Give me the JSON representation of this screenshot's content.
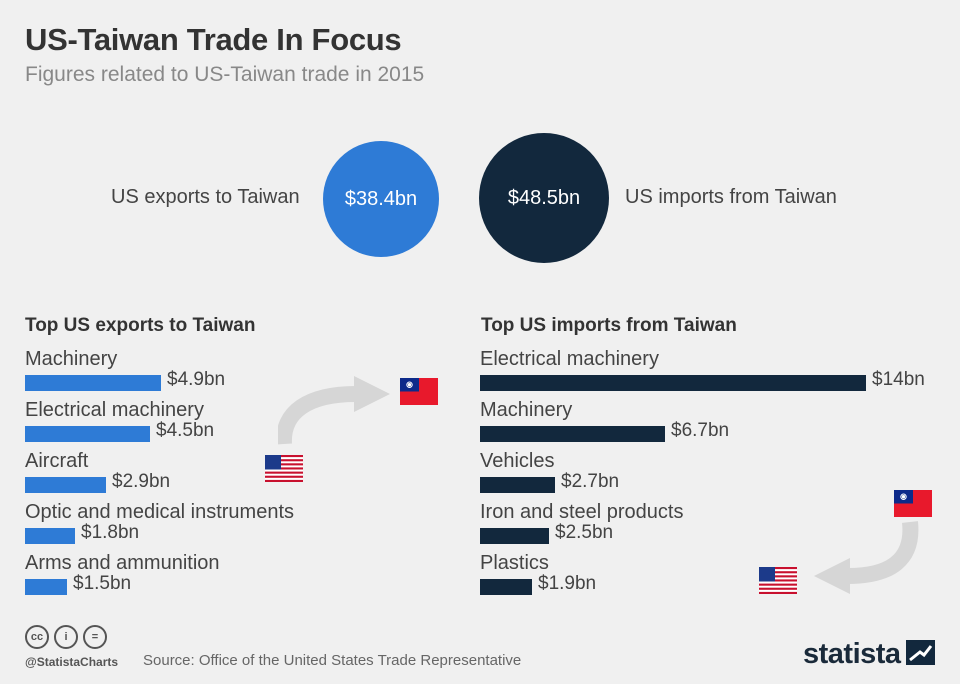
{
  "header": {
    "title": "US-Taiwan Trade In Focus",
    "subtitle": "Figures related to US-Taiwan trade in 2015"
  },
  "totals": {
    "exports_label": "US exports to Taiwan",
    "exports_value": "$38.4bn",
    "imports_label": "US imports from Taiwan",
    "imports_value": "$48.5bn"
  },
  "chart_data": [
    {
      "type": "bar",
      "title": "Top US exports to Taiwan",
      "categories": [
        "Machinery",
        "Electrical machinery",
        "Aircraft",
        "Optic and medical instruments",
        "Arms and ammunition"
      ],
      "values": [
        4.9,
        4.5,
        2.9,
        1.8,
        1.5
      ],
      "labels": [
        "$4.9bn",
        "$4.5bn",
        "$2.9bn",
        "$1.8bn",
        "$1.5bn"
      ],
      "unit": "bn USD",
      "color": "#2e7bd6"
    },
    {
      "type": "bar",
      "title": "Top US imports from Taiwan",
      "categories": [
        "Electrical machinery",
        "Machinery",
        "Vehicles",
        "Iron and steel products",
        "Plastics"
      ],
      "values": [
        14,
        6.7,
        2.7,
        2.5,
        1.9
      ],
      "labels": [
        "$14bn",
        "$6.7bn",
        "$2.7bn",
        "$2.5bn",
        "$1.9bn"
      ],
      "unit": "bn USD",
      "color": "#12283d"
    }
  ],
  "colors": {
    "exports": "#2e7bd6",
    "imports": "#12283d",
    "background": "#f0f0f0"
  },
  "icons": [
    "taiwan-flag",
    "us-flag",
    "curved-arrow",
    "cc-icon",
    "person-icon",
    "equals-icon"
  ],
  "footer": {
    "handle": "@StatistaCharts",
    "source": "Source: Office of the United States Trade Representative",
    "brand": "statista",
    "cc_icons": [
      "cc",
      "i",
      "="
    ]
  }
}
